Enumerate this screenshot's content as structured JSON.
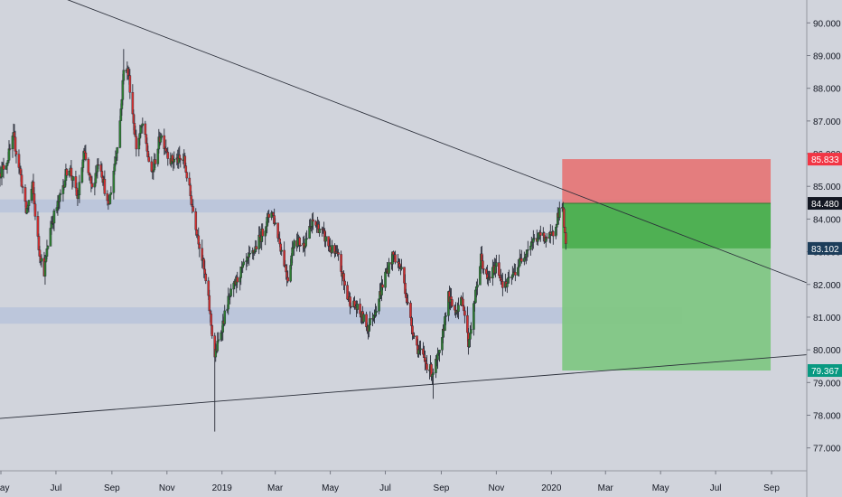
{
  "chart_data": {
    "type": "candlestick",
    "title": "",
    "xlabel": "",
    "ylabel": "",
    "ylim": [
      76.3,
      90.7
    ],
    "y_ticks": [
      "90.000",
      "89.000",
      "88.000",
      "87.000",
      "86.000",
      "85.000",
      "84.000",
      "83.000",
      "82.000",
      "81.000",
      "80.000",
      "79.000",
      "78.000",
      "77.000"
    ],
    "x_ticks": [
      {
        "label": "May",
        "date": "2018-05-01"
      },
      {
        "label": "Jul",
        "date": "2018-07-01"
      },
      {
        "label": "Sep",
        "date": "2018-09-01"
      },
      {
        "label": "Nov",
        "date": "2018-11-01"
      },
      {
        "label": "2019",
        "date": "2019-01-01"
      },
      {
        "label": "Mar",
        "date": "2019-03-01"
      },
      {
        "label": "May",
        "date": "2019-05-01"
      },
      {
        "label": "Jul",
        "date": "2019-07-01"
      },
      {
        "label": "Sep",
        "date": "2019-09-01"
      },
      {
        "label": "Nov",
        "date": "2019-11-01"
      },
      {
        "label": "2020",
        "date": "2020-01-01"
      },
      {
        "label": "Mar",
        "date": "2020-03-01"
      },
      {
        "label": "May",
        "date": "2020-05-01"
      },
      {
        "label": "Jul",
        "date": "2020-07-01"
      },
      {
        "label": "Sep",
        "date": "2020-09-01"
      }
    ],
    "xlim": [
      "2018-04-30",
      "2020-10-10"
    ],
    "price_labels": [
      {
        "value": 85.833,
        "label": "85.833",
        "color": "#f23645"
      },
      {
        "value": 84.48,
        "label": "84.480",
        "color": "#131722"
      },
      {
        "value": 83.102,
        "label": "83.102",
        "color": "#1c3d5a"
      },
      {
        "value": 79.367,
        "label": "79.367",
        "color": "#089981"
      }
    ],
    "zones": [
      {
        "start": "2018-04-30",
        "end": "2020-08-31",
        "y1": 84.6,
        "y2": 84.2
      },
      {
        "start": "2018-04-30",
        "end": "2020-05-25",
        "y1": 81.3,
        "y2": 80.8
      }
    ],
    "trendlines": [
      {
        "x1": "2018-04-30",
        "y1": 91.5,
        "x2": "2020-10-10",
        "y2": 82.05
      },
      {
        "x1": "2018-04-30",
        "y1": 77.9,
        "x2": "2020-10-10",
        "y2": 79.85
      }
    ],
    "position": {
      "start": "2020-01-13",
      "end": "2020-08-31",
      "entry": 84.48,
      "stop": 85.833,
      "target": 79.367,
      "current": 83.102,
      "colors": {
        "stop": "#e57373",
        "target": "#81c784",
        "open_profit": "#4caf50",
        "entry_line": "#2e7d32"
      }
    },
    "candle_colors": {
      "up": "#26a69a",
      "down": "#c2185b",
      "up_body": "#2e7d32",
      "down_body": "#d32f2f",
      "wick": "#2a2e39"
    },
    "anchors": [
      [
        "2018-04-30",
        85.4
      ],
      [
        "2018-05-08",
        85.8
      ],
      [
        "2018-05-15",
        86.5
      ],
      [
        "2018-05-22",
        85.5
      ],
      [
        "2018-05-29",
        84.2
      ],
      [
        "2018-06-05",
        85.0
      ],
      [
        "2018-06-12",
        83.1
      ],
      [
        "2018-06-18",
        82.4
      ],
      [
        "2018-06-25",
        83.8
      ],
      [
        "2018-07-05",
        84.6
      ],
      [
        "2018-07-15",
        85.7
      ],
      [
        "2018-07-25",
        84.6
      ],
      [
        "2018-08-01",
        86.0
      ],
      [
        "2018-08-10",
        84.9
      ],
      [
        "2018-08-18",
        85.9
      ],
      [
        "2018-08-28",
        84.3
      ],
      [
        "2018-09-05",
        85.9
      ],
      [
        "2018-09-10",
        87.0
      ],
      [
        "2018-09-15",
        88.9
      ],
      [
        "2018-09-20",
        88.3
      ],
      [
        "2018-09-28",
        86.2
      ],
      [
        "2018-10-05",
        86.9
      ],
      [
        "2018-10-15",
        85.3
      ],
      [
        "2018-10-25",
        86.6
      ],
      [
        "2018-11-05",
        85.8
      ],
      [
        "2018-11-20",
        85.8
      ],
      [
        "2018-12-01",
        84.1
      ],
      [
        "2018-12-10",
        82.8
      ],
      [
        "2018-12-17",
        81.5
      ],
      [
        "2018-12-24",
        79.8
      ],
      [
        "2018-12-31",
        80.6
      ],
      [
        "2019-01-08",
        81.5
      ],
      [
        "2019-01-20",
        82.3
      ],
      [
        "2019-02-05",
        83.0
      ],
      [
        "2019-02-15",
        83.6
      ],
      [
        "2019-02-25",
        84.3
      ],
      [
        "2019-03-05",
        83.4
      ],
      [
        "2019-03-15",
        82.2
      ],
      [
        "2019-03-22",
        83.4
      ],
      [
        "2019-04-01",
        83.2
      ],
      [
        "2019-04-12",
        83.9
      ],
      [
        "2019-04-20",
        83.7
      ],
      [
        "2019-05-01",
        83.1
      ],
      [
        "2019-05-10",
        82.8
      ],
      [
        "2019-05-20",
        81.6
      ],
      [
        "2019-06-01",
        81.2
      ],
      [
        "2019-06-12",
        80.7
      ],
      [
        "2019-06-22",
        81.4
      ],
      [
        "2019-07-01",
        82.3
      ],
      [
        "2019-07-10",
        82.9
      ],
      [
        "2019-07-20",
        82.4
      ],
      [
        "2019-07-28",
        81.0
      ],
      [
        "2019-08-05",
        80.1
      ],
      [
        "2019-08-15",
        79.6
      ],
      [
        "2019-08-22",
        79.3
      ],
      [
        "2019-09-01",
        80.0
      ],
      [
        "2019-09-08",
        81.7
      ],
      [
        "2019-09-15",
        81.2
      ],
      [
        "2019-09-25",
        81.5
      ],
      [
        "2019-10-01",
        80.2
      ],
      [
        "2019-10-07",
        81.3
      ],
      [
        "2019-10-15",
        82.8
      ],
      [
        "2019-10-22",
        82.1
      ],
      [
        "2019-11-01",
        82.6
      ],
      [
        "2019-11-10",
        81.9
      ],
      [
        "2019-11-20",
        82.3
      ],
      [
        "2019-12-01",
        82.9
      ],
      [
        "2019-12-10",
        83.3
      ],
      [
        "2019-12-20",
        83.5
      ],
      [
        "2020-01-01",
        83.4
      ],
      [
        "2020-01-08",
        84.1
      ],
      [
        "2020-01-13",
        84.5
      ],
      [
        "2020-01-17",
        83.1
      ]
    ]
  }
}
